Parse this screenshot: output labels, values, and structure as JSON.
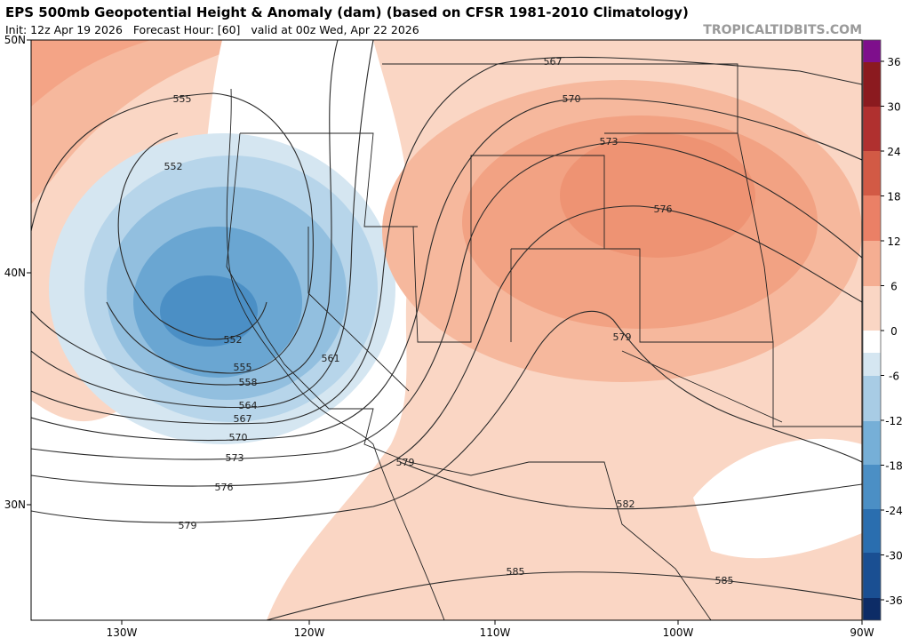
{
  "header": {
    "title": "EPS 500mb Geopotential Height & Anomaly (dam) (based on CFSR 1981-2010 Climatology)",
    "subtitle": "Init: 12z Apr 19 2026   Forecast Hour: [60]   valid at 00z Wed, Apr 22 2026",
    "credit": "TROPICALTIDBITS.COM"
  },
  "latitude_labels": [
    "50N",
    "40N",
    "30N"
  ],
  "longitude_labels": [
    "130W",
    "120W",
    "110W",
    "100W",
    "90W"
  ],
  "colorbar": {
    "ticks": [
      36,
      30,
      24,
      18,
      12,
      6,
      0,
      -6,
      -12,
      -18,
      -24,
      -30,
      -36
    ]
  },
  "contour_labels": [
    555,
    552,
    552,
    555,
    558,
    561,
    564,
    567,
    570,
    573,
    576,
    579,
    567,
    570,
    573,
    576,
    579,
    579,
    582,
    585,
    585
  ]
}
